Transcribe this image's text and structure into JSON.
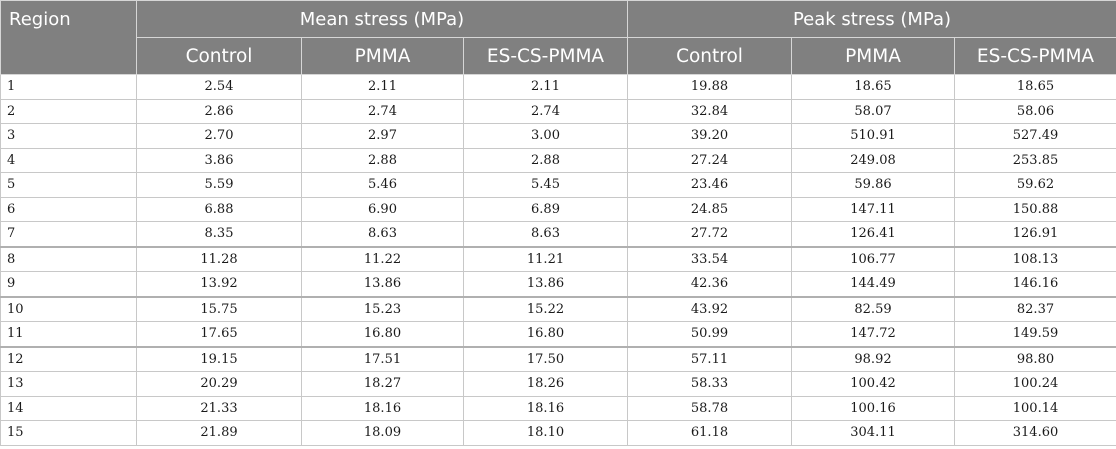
{
  "table": {
    "headers": {
      "region": "Region",
      "mean_group": "Mean stress (MPa)",
      "peak_group": "Peak stress (MPa)",
      "mean_cols": [
        "Control",
        "PMMA",
        "ES-CS-PMMA"
      ],
      "peak_cols": [
        "Control",
        "PMMA",
        "ES-CS-PMMA"
      ]
    },
    "rows": [
      [
        "1",
        "2.54",
        "2.11",
        "2.11",
        "19.88",
        "18.65",
        "18.65"
      ],
      [
        "2",
        "2.86",
        "2.74",
        "2.74",
        "32.84",
        "58.07",
        "58.06"
      ],
      [
        "3",
        "2.70",
        "2.97",
        "3.00",
        "39.20",
        "510.91",
        "527.49"
      ],
      [
        "4",
        "3.86",
        "2.88",
        "2.88",
        "27.24",
        "249.08",
        "253.85"
      ],
      [
        "5",
        "5.59",
        "5.46",
        "5.45",
        "23.46",
        "59.86",
        "59.62"
      ],
      [
        "6",
        "6.88",
        "6.90",
        "6.89",
        "24.85",
        "147.11",
        "150.88"
      ],
      [
        "7",
        "8.35",
        "8.63",
        "8.63",
        "27.72",
        "126.41",
        "126.91"
      ],
      [
        "8",
        "11.28",
        "11.22",
        "11.21",
        "33.54",
        "106.77",
        "108.13"
      ],
      [
        "9",
        "13.92",
        "13.86",
        "13.86",
        "42.36",
        "144.49",
        "146.16"
      ],
      [
        "10",
        "15.75",
        "15.23",
        "15.22",
        "43.92",
        "82.59",
        "82.37"
      ],
      [
        "11",
        "17.65",
        "16.80",
        "16.80",
        "50.99",
        "147.72",
        "149.59"
      ],
      [
        "12",
        "19.15",
        "17.51",
        "17.50",
        "57.11",
        "98.92",
        "98.80"
      ],
      [
        "13",
        "20.29",
        "18.27",
        "18.26",
        "58.33",
        "100.42",
        "100.24"
      ],
      [
        "14",
        "21.33",
        "18.16",
        "18.16",
        "58.78",
        "100.16",
        "100.14"
      ],
      [
        "15",
        "21.89",
        "18.09",
        "18.10",
        "61.18",
        "304.11",
        "314.60"
      ]
    ]
  }
}
